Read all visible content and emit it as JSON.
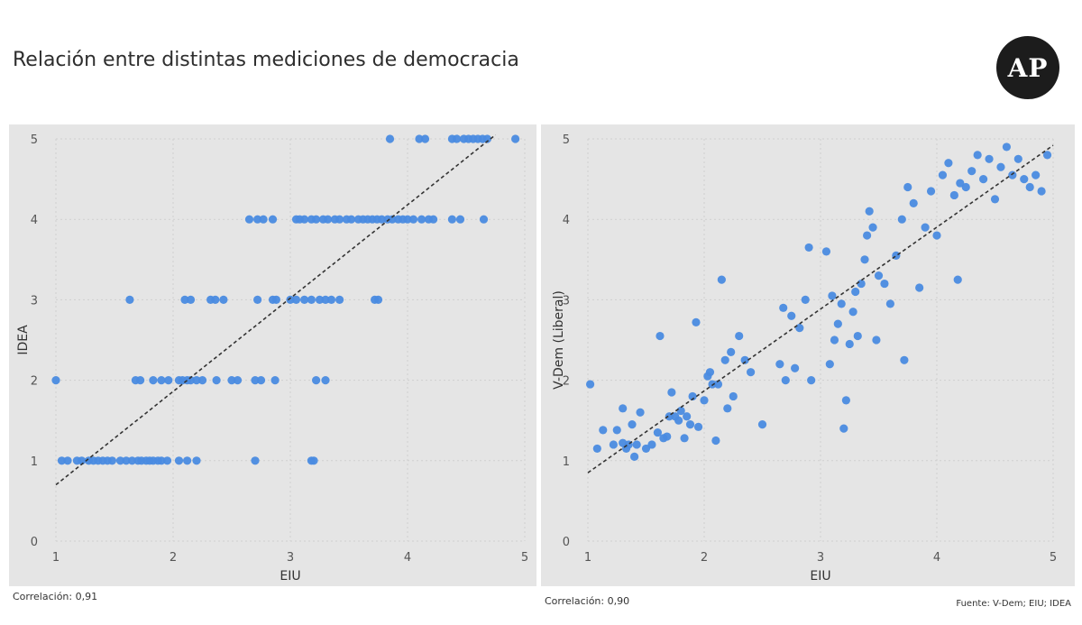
{
  "title": "Relación entre distintas mediciones de democracia",
  "logo": "AP",
  "source": "Fuente: V-Dem; EIU; IDEA",
  "colors": {
    "point": "#4a8be0",
    "trend": "#333333",
    "panel": "#e5e5e5",
    "grid": "#d0d0d0"
  },
  "chart_data": [
    {
      "type": "scatter",
      "xlabel": "EIU",
      "ylabel": "IDEA",
      "xlim": [
        1,
        5
      ],
      "ylim": [
        0,
        5
      ],
      "xticks": [
        1,
        2,
        3,
        4,
        5
      ],
      "yticks": [
        0,
        1,
        2,
        3,
        4,
        5
      ],
      "grid": true,
      "trendline": {
        "x0": 1.0,
        "y0": 0.7,
        "x1": 4.75,
        "y1": 5.05
      },
      "correlation": "Correlación: 0,91",
      "points": [
        [
          1.0,
          2
        ],
        [
          1.05,
          1
        ],
        [
          1.1,
          1
        ],
        [
          1.18,
          1
        ],
        [
          1.22,
          1
        ],
        [
          1.28,
          1
        ],
        [
          1.32,
          1
        ],
        [
          1.36,
          1
        ],
        [
          1.4,
          1
        ],
        [
          1.44,
          1
        ],
        [
          1.48,
          1
        ],
        [
          1.55,
          1
        ],
        [
          1.6,
          1
        ],
        [
          1.65,
          1
        ],
        [
          1.7,
          1
        ],
        [
          1.73,
          1
        ],
        [
          1.77,
          1
        ],
        [
          1.8,
          1
        ],
        [
          1.83,
          1
        ],
        [
          1.87,
          1
        ],
        [
          1.9,
          1
        ],
        [
          1.95,
          1
        ],
        [
          2.05,
          1
        ],
        [
          2.12,
          1
        ],
        [
          2.2,
          1
        ],
        [
          2.7,
          1
        ],
        [
          3.18,
          1
        ],
        [
          3.2,
          1
        ],
        [
          1.68,
          2
        ],
        [
          1.72,
          2
        ],
        [
          1.83,
          2
        ],
        [
          1.9,
          2
        ],
        [
          1.96,
          2
        ],
        [
          2.05,
          2
        ],
        [
          2.08,
          2
        ],
        [
          2.12,
          2
        ],
        [
          2.15,
          2
        ],
        [
          2.2,
          2
        ],
        [
          2.25,
          2
        ],
        [
          2.37,
          2
        ],
        [
          2.5,
          2
        ],
        [
          2.55,
          2
        ],
        [
          2.7,
          2
        ],
        [
          2.75,
          2
        ],
        [
          2.87,
          2
        ],
        [
          3.22,
          2
        ],
        [
          3.3,
          2
        ],
        [
          1.63,
          3
        ],
        [
          2.1,
          3
        ],
        [
          2.15,
          3
        ],
        [
          2.32,
          3
        ],
        [
          2.36,
          3
        ],
        [
          2.43,
          3
        ],
        [
          2.72,
          3
        ],
        [
          2.85,
          3
        ],
        [
          2.88,
          3
        ],
        [
          3.0,
          3
        ],
        [
          3.05,
          3
        ],
        [
          3.12,
          3
        ],
        [
          3.18,
          3
        ],
        [
          3.25,
          3
        ],
        [
          3.3,
          3
        ],
        [
          3.35,
          3
        ],
        [
          3.42,
          3
        ],
        [
          3.72,
          3
        ],
        [
          3.75,
          3
        ],
        [
          2.65,
          4
        ],
        [
          2.72,
          4
        ],
        [
          2.77,
          4
        ],
        [
          2.85,
          4
        ],
        [
          3.05,
          4
        ],
        [
          3.08,
          4
        ],
        [
          3.12,
          4
        ],
        [
          3.18,
          4
        ],
        [
          3.22,
          4
        ],
        [
          3.28,
          4
        ],
        [
          3.32,
          4
        ],
        [
          3.38,
          4
        ],
        [
          3.42,
          4
        ],
        [
          3.48,
          4
        ],
        [
          3.52,
          4
        ],
        [
          3.58,
          4
        ],
        [
          3.62,
          4
        ],
        [
          3.66,
          4
        ],
        [
          3.7,
          4
        ],
        [
          3.74,
          4
        ],
        [
          3.78,
          4
        ],
        [
          3.83,
          4
        ],
        [
          3.87,
          4
        ],
        [
          3.92,
          4
        ],
        [
          3.96,
          4
        ],
        [
          4.0,
          4
        ],
        [
          4.05,
          4
        ],
        [
          4.12,
          4
        ],
        [
          4.18,
          4
        ],
        [
          4.22,
          4
        ],
        [
          4.38,
          4
        ],
        [
          4.45,
          4
        ],
        [
          4.65,
          4
        ],
        [
          3.85,
          5
        ],
        [
          4.1,
          5
        ],
        [
          4.15,
          5
        ],
        [
          4.38,
          5
        ],
        [
          4.42,
          5
        ],
        [
          4.48,
          5
        ],
        [
          4.52,
          5
        ],
        [
          4.56,
          5
        ],
        [
          4.6,
          5
        ],
        [
          4.64,
          5
        ],
        [
          4.68,
          5
        ],
        [
          4.92,
          5
        ]
      ]
    },
    {
      "type": "scatter",
      "xlabel": "EIU",
      "ylabel": "V-Dem (Liberal)",
      "xlim": [
        1,
        5
      ],
      "ylim": [
        0,
        5
      ],
      "xticks": [
        1,
        2,
        3,
        4,
        5
      ],
      "yticks": [
        0,
        1,
        2,
        3,
        4,
        5
      ],
      "grid": true,
      "trendline": {
        "x0": 1.0,
        "y0": 0.85,
        "x1": 5.0,
        "y1": 4.92
      },
      "correlation": "Correlación: 0,90",
      "points": [
        [
          1.02,
          1.95
        ],
        [
          1.08,
          1.15
        ],
        [
          1.13,
          1.38
        ],
        [
          1.22,
          1.2
        ],
        [
          1.25,
          1.38
        ],
        [
          1.3,
          1.22
        ],
        [
          1.3,
          1.65
        ],
        [
          1.33,
          1.15
        ],
        [
          1.35,
          1.2
        ],
        [
          1.38,
          1.45
        ],
        [
          1.4,
          1.05
        ],
        [
          1.42,
          1.2
        ],
        [
          1.45,
          1.6
        ],
        [
          1.5,
          1.15
        ],
        [
          1.55,
          1.2
        ],
        [
          1.6,
          1.35
        ],
        [
          1.62,
          2.55
        ],
        [
          1.65,
          1.28
        ],
        [
          1.68,
          1.3
        ],
        [
          1.7,
          1.55
        ],
        [
          1.72,
          1.85
        ],
        [
          1.75,
          1.55
        ],
        [
          1.78,
          1.5
        ],
        [
          1.8,
          1.62
        ],
        [
          1.83,
          1.28
        ],
        [
          1.85,
          1.55
        ],
        [
          1.88,
          1.45
        ],
        [
          1.9,
          1.8
        ],
        [
          1.93,
          2.72
        ],
        [
          1.95,
          1.42
        ],
        [
          2.0,
          1.75
        ],
        [
          2.03,
          2.05
        ],
        [
          2.05,
          2.1
        ],
        [
          2.07,
          1.95
        ],
        [
          2.1,
          1.25
        ],
        [
          2.12,
          1.95
        ],
        [
          2.15,
          3.25
        ],
        [
          2.18,
          2.25
        ],
        [
          2.2,
          1.65
        ],
        [
          2.23,
          2.35
        ],
        [
          2.25,
          1.8
        ],
        [
          2.3,
          2.55
        ],
        [
          2.35,
          2.25
        ],
        [
          2.4,
          2.1
        ],
        [
          2.5,
          1.45
        ],
        [
          2.65,
          2.2
        ],
        [
          2.68,
          2.9
        ],
        [
          2.7,
          2.0
        ],
        [
          2.75,
          2.8
        ],
        [
          2.78,
          2.15
        ],
        [
          2.82,
          2.65
        ],
        [
          2.87,
          3.0
        ],
        [
          2.9,
          3.65
        ],
        [
          2.92,
          2.0
        ],
        [
          3.05,
          3.6
        ],
        [
          3.08,
          2.2
        ],
        [
          3.1,
          3.05
        ],
        [
          3.12,
          2.5
        ],
        [
          3.15,
          2.7
        ],
        [
          3.18,
          2.95
        ],
        [
          3.2,
          1.4
        ],
        [
          3.22,
          1.75
        ],
        [
          3.25,
          2.45
        ],
        [
          3.28,
          2.85
        ],
        [
          3.3,
          3.1
        ],
        [
          3.32,
          2.55
        ],
        [
          3.35,
          3.2
        ],
        [
          3.38,
          3.5
        ],
        [
          3.4,
          3.8
        ],
        [
          3.42,
          4.1
        ],
        [
          3.45,
          3.9
        ],
        [
          3.48,
          2.5
        ],
        [
          3.5,
          3.3
        ],
        [
          3.55,
          3.2
        ],
        [
          3.6,
          2.95
        ],
        [
          3.65,
          3.55
        ],
        [
          3.7,
          4.0
        ],
        [
          3.72,
          2.25
        ],
        [
          3.75,
          4.4
        ],
        [
          3.8,
          4.2
        ],
        [
          3.85,
          3.15
        ],
        [
          3.9,
          3.9
        ],
        [
          3.95,
          4.35
        ],
        [
          4.0,
          3.8
        ],
        [
          4.05,
          4.55
        ],
        [
          4.1,
          4.7
        ],
        [
          4.15,
          4.3
        ],
        [
          4.18,
          3.25
        ],
        [
          4.2,
          4.45
        ],
        [
          4.25,
          4.4
        ],
        [
          4.3,
          4.6
        ],
        [
          4.35,
          4.8
        ],
        [
          4.4,
          4.5
        ],
        [
          4.45,
          4.75
        ],
        [
          4.5,
          4.25
        ],
        [
          4.55,
          4.65
        ],
        [
          4.6,
          4.9
        ],
        [
          4.65,
          4.55
        ],
        [
          4.7,
          4.75
        ],
        [
          4.75,
          4.5
        ],
        [
          4.8,
          4.4
        ],
        [
          4.85,
          4.55
        ],
        [
          4.9,
          4.35
        ],
        [
          4.95,
          4.8
        ]
      ]
    }
  ]
}
